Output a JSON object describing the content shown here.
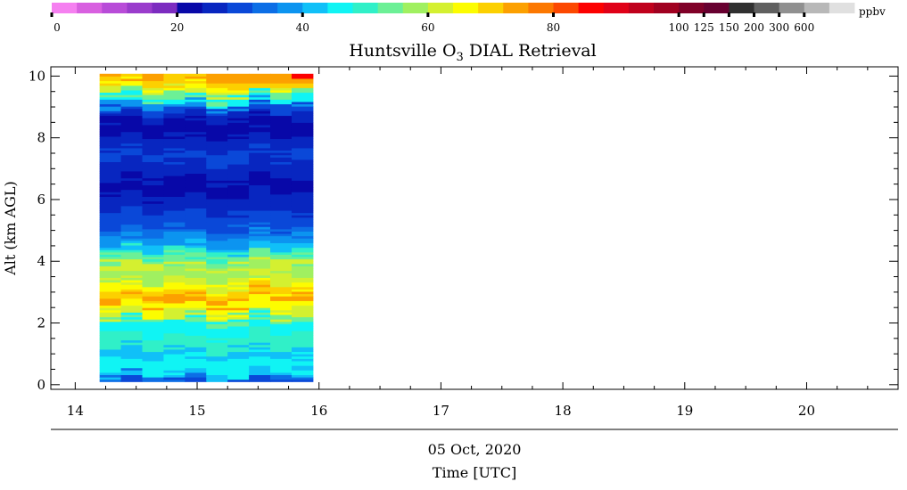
{
  "chart_data": {
    "type": "heatmap",
    "title_main": "Huntsville O",
    "title_sub": "3",
    "title_rest": " DIAL Retrieval",
    "xlabel": "Time [UTC]",
    "date_label": "05 Oct, 2020",
    "ylabel": "Alt (km AGL)",
    "x_range": [
      13.8,
      20.75
    ],
    "y_range": [
      -0.15,
      10.3
    ],
    "x_ticks": [
      14,
      15,
      16,
      17,
      18,
      19,
      20
    ],
    "x_tick_labels": [
      "14",
      "15",
      "16",
      "17",
      "18",
      "19",
      "20"
    ],
    "y_ticks": [
      0,
      2,
      4,
      6,
      8,
      10
    ],
    "y_tick_labels": [
      "0",
      "2",
      "4",
      "6",
      "8",
      "10"
    ],
    "data_time_range": [
      14.2,
      15.95
    ],
    "data_alt_range": [
      0.1,
      10.05
    ],
    "colorbar": {
      "unit": "ppbv",
      "labels": [
        "0",
        "20",
        "40",
        "60",
        "80",
        "100",
        "125",
        "150",
        "200",
        "300",
        "600"
      ],
      "colors": [
        "#f580f0",
        "#d860e0",
        "#b84cd8",
        "#9a3ccc",
        "#7c2cc0",
        "#0808a8",
        "#0826c0",
        "#0a48d8",
        "#0c6ee6",
        "#0c94f0",
        "#10c0f8",
        "#10f4f4",
        "#30f0c8",
        "#6cf096",
        "#a0f060",
        "#d4f030",
        "#fcfc00",
        "#fcd000",
        "#fca000",
        "#fc7800",
        "#fc4800",
        "#fc0000",
        "#e00018",
        "#c0001c",
        "#a00020",
        "#800028",
        "#680030",
        "#303030",
        "#606060",
        "#909090",
        "#b8b8b8",
        "#e0e0e0"
      ]
    },
    "profile_colors": [
      [
        "#0a48d8",
        0.1
      ],
      [
        "#0c6ee6",
        0.25
      ],
      [
        "#10c0f8",
        0.45
      ],
      [
        "#10f4f4",
        0.9
      ],
      [
        "#10c0f8",
        1.2
      ],
      [
        "#30f0c8",
        1.7
      ],
      [
        "#10f4f4",
        2.1
      ],
      [
        "#6cf096",
        2.25
      ],
      [
        "#d4f030",
        2.45
      ],
      [
        "#fcfc00",
        2.7
      ],
      [
        "#fca000",
        2.9
      ],
      [
        "#fcd000",
        3.1
      ],
      [
        "#fcfc00",
        3.3
      ],
      [
        "#d4f030",
        3.5
      ],
      [
        "#a0f060",
        3.8
      ],
      [
        "#d4f030",
        4.0
      ],
      [
        "#6cf096",
        4.2
      ],
      [
        "#30f0c8",
        4.4
      ],
      [
        "#10c0f8",
        4.6
      ],
      [
        "#0c94f0",
        4.85
      ],
      [
        "#0c6ee6",
        5.1
      ],
      [
        "#0a48d8",
        5.6
      ],
      [
        "#0826c0",
        6.2
      ],
      [
        "#0808a8",
        6.7
      ],
      [
        "#0826c0",
        7.3
      ],
      [
        "#0a48d8",
        7.6
      ],
      [
        "#0826c0",
        8.1
      ],
      [
        "#0808a8",
        8.6
      ],
      [
        "#0826c0",
        8.85
      ],
      [
        "#0a48d8",
        9.05
      ],
      [
        "#0c94f0",
        9.2
      ],
      [
        "#10f4f4",
        9.35
      ],
      [
        "#6cf096",
        9.5
      ],
      [
        "#d4f030",
        9.65
      ],
      [
        "#fcfc00",
        9.8
      ],
      [
        "#fcd000",
        9.95
      ],
      [
        "#fca000",
        10.05
      ]
    ]
  }
}
